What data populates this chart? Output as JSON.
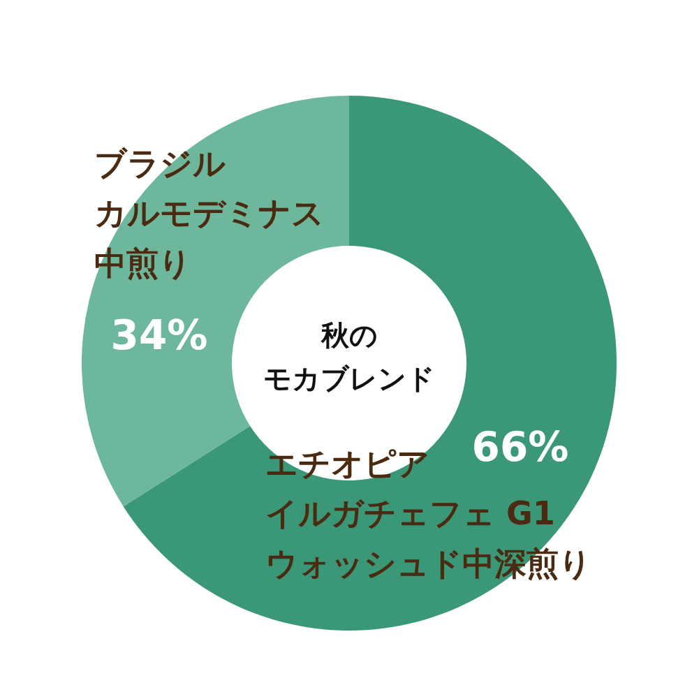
{
  "chart_data": {
    "type": "donut",
    "title": "秋のモカブレンド",
    "categories": [
      "エチオピアイルガチェフェ G1ウォッシュド中深煎り",
      "ブラジルカルモデミナス中煎り"
    ],
    "values": [
      66,
      34
    ],
    "colors": [
      "#3a9878",
      "#6db89c"
    ],
    "value_labels": [
      "66%",
      "34%"
    ]
  }
}
